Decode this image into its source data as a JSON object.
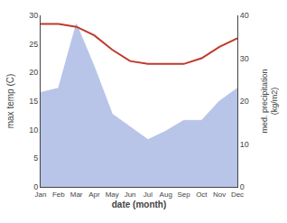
{
  "chart_data": {
    "type": "line",
    "categories": [
      "Jan",
      "Feb",
      "Mar",
      "Apr",
      "May",
      "Jun",
      "Jul",
      "Aug",
      "Sep",
      "Oct",
      "Nov",
      "Dec"
    ],
    "xlabel": "date (month)",
    "ylabel": "max temp (C)",
    "y2label": "med. precipitation\n(kg/m2)",
    "ylim": [
      0,
      30
    ],
    "yticks": [
      0,
      5,
      10,
      15,
      20,
      25,
      30
    ],
    "y2lim": [
      0,
      40
    ],
    "y2ticks": [
      0,
      10,
      20,
      30,
      40
    ],
    "grid": false,
    "series": [
      {
        "type": "area",
        "axis": "y2",
        "color": "#b8c4e8",
        "values": [
          22.0,
          23.0,
          38.0,
          28.0,
          17.0,
          14.0,
          11.0,
          13.0,
          15.5,
          15.5,
          20.0,
          23.0
        ]
      },
      {
        "type": "line",
        "color": "#c0392b",
        "values": [
          28.5,
          28.5,
          28.0,
          26.5,
          24.0,
          22.0,
          21.5,
          21.5,
          21.5,
          22.5,
          24.5,
          26.0
        ]
      }
    ]
  }
}
